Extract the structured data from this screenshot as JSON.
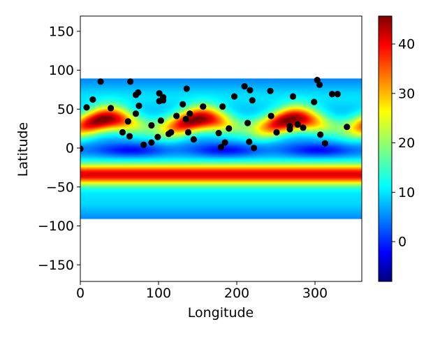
{
  "chart_data": {
    "type": "heatmap",
    "title": "",
    "xlabel": "Longitude",
    "ylabel": "Latitude",
    "xlim": [
      0,
      360
    ],
    "ylim": [
      -170,
      170
    ],
    "grid": false,
    "x_ticks": [
      "0",
      "100",
      "200",
      "300"
    ],
    "y_ticks": [
      "150",
      "100",
      "50",
      "0",
      "−50",
      "−100",
      "−150"
    ],
    "colorbar": {
      "colormap": "jet",
      "vmin": -7.5,
      "vmax": 46,
      "ticks": [
        "0",
        "10",
        "20",
        "30",
        "40"
      ]
    },
    "heatmap_extent": {
      "lon": [
        0,
        360
      ],
      "lat": [
        -90,
        90
      ]
    },
    "heatmap_description": "band pattern: low near 0 lat, high bands near 30 N (modulated with longitude) and -35 S",
    "scatter_points": [
      {
        "x": 0,
        "y": 0
      },
      {
        "x": 8,
        "y": 53
      },
      {
        "x": 16,
        "y": 63
      },
      {
        "x": 26,
        "y": 86
      },
      {
        "x": 39,
        "y": 52
      },
      {
        "x": 54,
        "y": 21
      },
      {
        "x": 61,
        "y": 35
      },
      {
        "x": 63,
        "y": 16
      },
      {
        "x": 64,
        "y": 86
      },
      {
        "x": 71,
        "y": 45
      },
      {
        "x": 71,
        "y": 69
      },
      {
        "x": 74,
        "y": 72
      },
      {
        "x": 75,
        "y": 55
      },
      {
        "x": 81,
        "y": 5
      },
      {
        "x": 91,
        "y": 30
      },
      {
        "x": 91,
        "y": 8
      },
      {
        "x": 99,
        "y": 15
      },
      {
        "x": 101,
        "y": 71
      },
      {
        "x": 101,
        "y": 61
      },
      {
        "x": 103,
        "y": 36
      },
      {
        "x": 106,
        "y": 62
      },
      {
        "x": 106,
        "y": 66
      },
      {
        "x": 113,
        "y": 19
      },
      {
        "x": 116,
        "y": 21
      },
      {
        "x": 123,
        "y": 42
      },
      {
        "x": 131,
        "y": 57
      },
      {
        "x": 135,
        "y": 38
      },
      {
        "x": 136,
        "y": 77
      },
      {
        "x": 138,
        "y": 21
      },
      {
        "x": 140,
        "y": 45
      },
      {
        "x": 145,
        "y": 12
      },
      {
        "x": 157,
        "y": 54
      },
      {
        "x": 177,
        "y": 20
      },
      {
        "x": 180,
        "y": 2
      },
      {
        "x": 182,
        "y": 54
      },
      {
        "x": 185,
        "y": 8
      },
      {
        "x": 190,
        "y": 26
      },
      {
        "x": 197,
        "y": 67
      },
      {
        "x": 210,
        "y": 80
      },
      {
        "x": 214,
        "y": 33
      },
      {
        "x": 216,
        "y": 9
      },
      {
        "x": 217,
        "y": 75
      },
      {
        "x": 220,
        "y": 62
      },
      {
        "x": 222,
        "y": 1
      },
      {
        "x": 243,
        "y": 74
      },
      {
        "x": 244,
        "y": 42
      },
      {
        "x": 251,
        "y": 21
      },
      {
        "x": 268,
        "y": 29
      },
      {
        "x": 268,
        "y": 25
      },
      {
        "x": 272,
        "y": 67
      },
      {
        "x": 278,
        "y": 31
      },
      {
        "x": 285,
        "y": 27
      },
      {
        "x": 299,
        "y": 60
      },
      {
        "x": 303,
        "y": 88
      },
      {
        "x": 306,
        "y": 82
      },
      {
        "x": 307,
        "y": 18
      },
      {
        "x": 313,
        "y": 7
      },
      {
        "x": 322,
        "y": 70
      },
      {
        "x": 329,
        "y": 70
      },
      {
        "x": 341,
        "y": 28
      }
    ]
  }
}
